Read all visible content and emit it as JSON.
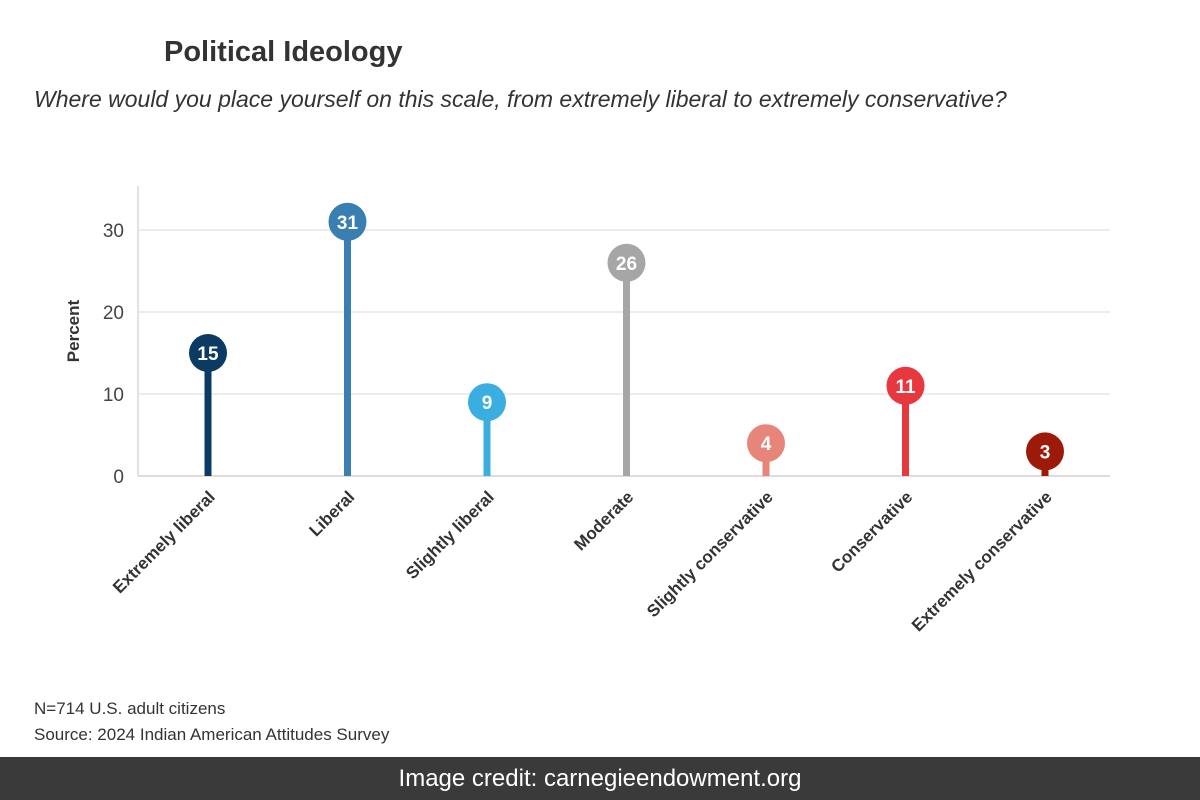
{
  "title": "Political Ideology",
  "subtitle": "Where would you place yourself on this scale, from extremely liberal to extremely conservative?",
  "notes": {
    "sample": "N=714 U.S. adult citizens",
    "source": "Source: 2024 Indian American Attitudes Survey"
  },
  "credit": "Image credit: carnegieendowment.org",
  "chart_data": {
    "type": "lollipop",
    "title": "Political Ideology",
    "subtitle": "Where would you place yourself on this scale, from extremely liberal to extremely conservative?",
    "xlabel": "",
    "ylabel": "Percent",
    "ylim": [
      0,
      35
    ],
    "yticks": [
      0,
      10,
      20,
      30
    ],
    "grid": true,
    "legend": "none",
    "categories": [
      "Extremely liberal",
      "Liberal",
      "Slightly liberal",
      "Moderate",
      "Slightly conservative",
      "Conservative",
      "Extremely conservative"
    ],
    "values": [
      15,
      31,
      9,
      26,
      4,
      11,
      3
    ],
    "colors": [
      "#0b3a63",
      "#3a7fb2",
      "#3aaee0",
      "#a6a6a6",
      "#e8857a",
      "#e8383f",
      "#9e1a08"
    ]
  }
}
